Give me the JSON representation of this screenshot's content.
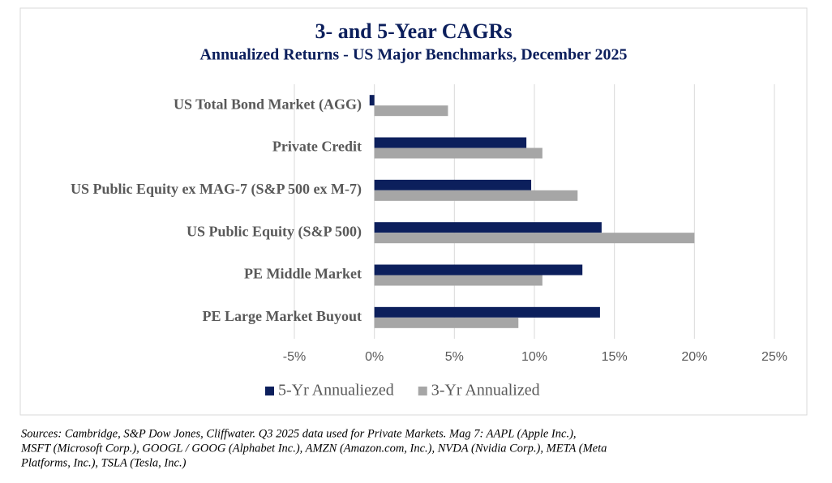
{
  "chart_data": {
    "type": "bar",
    "orientation": "horizontal",
    "title": "3- and 5-Year CAGRs",
    "subtitle": "Annualized Returns - US Major Benchmarks, December 2025",
    "categories": [
      "US Total Bond Market (AGG)",
      "Private Credit",
      "US Public Equity ex MAG-7 (S&P 500 ex M-7)",
      "US Public Equity (S&P 500)",
      "PE Middle Market",
      "PE Large Market Buyout"
    ],
    "series": [
      {
        "name": "5-Yr Annualiezed",
        "color": "#0c1f5c",
        "values": [
          -0.3,
          9.5,
          9.8,
          14.2,
          13.0,
          14.1
        ]
      },
      {
        "name": "3-Yr Annualized",
        "color": "#a6a6a6",
        "values": [
          4.6,
          10.5,
          12.7,
          20.0,
          10.5,
          9.0
        ]
      }
    ],
    "xlim": [
      -5,
      25
    ],
    "xticks": [
      {
        "value": -5,
        "label": "-5%"
      },
      {
        "value": 0,
        "label": "0%"
      },
      {
        "value": 5,
        "label": "5%"
      },
      {
        "value": 10,
        "label": "10%"
      },
      {
        "value": 15,
        "label": "15%"
      },
      {
        "value": 20,
        "label": "20%"
      },
      {
        "value": 25,
        "label": "25%"
      }
    ],
    "grid": true,
    "legend": "bottom"
  },
  "footnote": [
    "Sources: Cambridge, S&P Dow Jones, Cliffwater.  Q3 2025 data used for Private Markets.  Mag 7: AAPL (Apple Inc.),",
    "MSFT (Microsoft Corp.), GOOGL / GOOG (Alphabet Inc.), AMZN (Amazon.com, Inc.), NVDA (Nvidia Corp.), META (Meta",
    "Platforms, Inc.), TSLA (Tesla, Inc.)"
  ]
}
